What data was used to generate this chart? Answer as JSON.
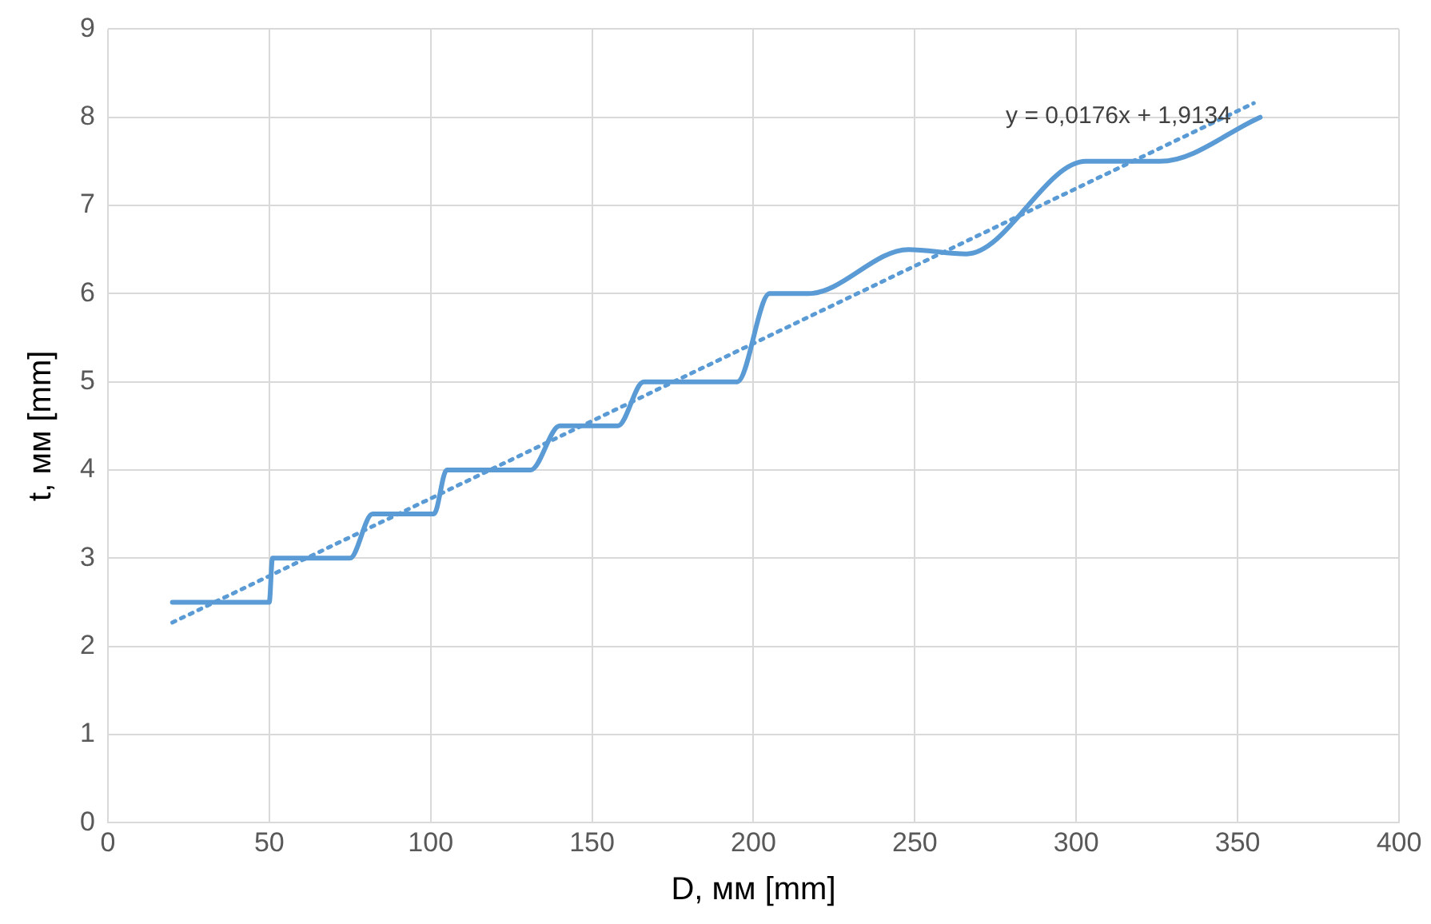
{
  "chart_data": {
    "type": "line",
    "xlabel": "D, мм [mm]",
    "ylabel": "t, мм [mm]",
    "xlim": [
      0,
      400
    ],
    "xticks": [
      0,
      50,
      100,
      150,
      200,
      250,
      300,
      350,
      400
    ],
    "ylim": [
      0,
      9
    ],
    "yticks": [
      0,
      1,
      2,
      3,
      4,
      5,
      6,
      7,
      8,
      9
    ],
    "grid": true,
    "legend": false,
    "marker": "none",
    "series": [
      {
        "color": "#5b9bd5",
        "line_style": "solid",
        "x": [
          20,
          50,
          51,
          75,
          82,
          101,
          105,
          131,
          140,
          158,
          166,
          195,
          205,
          217,
          248,
          266,
          303,
          326,
          357
        ],
        "values": [
          2.5,
          2.5,
          3,
          3,
          3.5,
          3.5,
          4,
          4,
          4.5,
          4.5,
          5,
          5,
          6,
          6,
          6.5,
          6.45,
          7.5,
          7.5,
          8
        ]
      },
      {
        "type": "line",
        "color": "#5b9bd5",
        "line_style": "dotted",
        "x": [
          20,
          355
        ],
        "values": [
          2.27,
          8.16
        ]
      }
    ],
    "annotations": [
      "y = 0,0176x + 1,9134"
    ]
  }
}
